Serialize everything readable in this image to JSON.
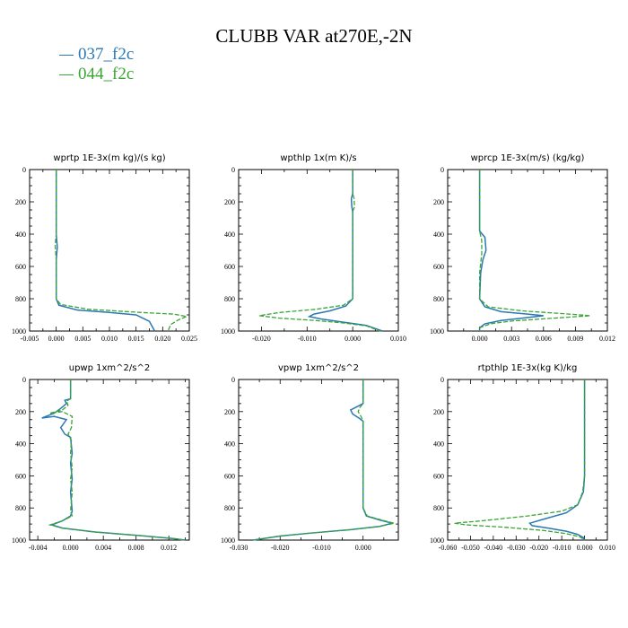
{
  "title": "CLUBB VAR at270E,-2N",
  "legend": [
    {
      "label": "037_f2c",
      "color": "#2a78b4"
    },
    {
      "label": "044_f2c",
      "color": "#3aa534"
    }
  ],
  "chart_data": [
    {
      "type": "line",
      "title": "wprtp  1E-3x(m kg)/(s kg)",
      "xlim": [
        -0.005,
        0.025
      ],
      "xticks": [
        "-0.005",
        "0.000",
        "0.005",
        "0.010",
        "0.015",
        "0.020",
        "0.025"
      ],
      "xtick_values": [
        -0.005,
        0.0,
        0.005,
        0.01,
        0.015,
        0.02,
        0.025
      ],
      "ylim": [
        0,
        1000
      ],
      "yticks": [
        "0",
        "200",
        "400",
        "600",
        "800",
        "1000"
      ],
      "y_inverted": true,
      "series": [
        {
          "name": "037_f2c",
          "points": [
            [
              0,
              0
            ],
            [
              0,
              400
            ],
            [
              0.0002,
              480
            ],
            [
              0,
              560
            ],
            [
              0,
              800
            ],
            [
              0.0005,
              840
            ],
            [
              0.004,
              870
            ],
            [
              0.01,
              885
            ],
            [
              0.015,
              900
            ],
            [
              0.0175,
              940
            ],
            [
              0.018,
              970
            ],
            [
              0.0185,
              1000
            ]
          ]
        },
        {
          "name": "044_f2c",
          "points": [
            [
              0,
              0
            ],
            [
              0,
              400
            ],
            [
              -0.0002,
              470
            ],
            [
              0,
              560
            ],
            [
              0,
              800
            ],
            [
              0.0008,
              835
            ],
            [
              0.006,
              865
            ],
            [
              0.016,
              885
            ],
            [
              0.022,
              895
            ],
            [
              0.0245,
              910
            ],
            [
              0.023,
              930
            ],
            [
              0.0215,
              960
            ],
            [
              0.021,
              1000
            ]
          ]
        }
      ]
    },
    {
      "type": "line",
      "title": "wpthlp  1x(m K)/s",
      "xlim": [
        -0.025,
        0.01
      ],
      "xticks": [
        "-0.020",
        "-0.010",
        "0.000",
        "0.010"
      ],
      "xtick_values": [
        -0.02,
        -0.01,
        0.0,
        0.01
      ],
      "ylim": [
        0,
        1000
      ],
      "yticks": [
        "0",
        "200",
        "400",
        "600",
        "800",
        "1000"
      ],
      "y_inverted": true,
      "series": [
        {
          "name": "037_f2c",
          "points": [
            [
              0,
              0
            ],
            [
              0,
              150
            ],
            [
              -0.0003,
              180
            ],
            [
              -0.0002,
              230
            ],
            [
              0,
              260
            ],
            [
              0,
              800
            ],
            [
              -0.0015,
              845
            ],
            [
              -0.005,
              875
            ],
            [
              -0.0085,
              895
            ],
            [
              -0.0095,
              910
            ],
            [
              -0.007,
              925
            ],
            [
              -0.002,
              945
            ],
            [
              0.003,
              965
            ],
            [
              0.0065,
              1000
            ]
          ]
        },
        {
          "name": "044_f2c",
          "points": [
            [
              0,
              0
            ],
            [
              0,
              150
            ],
            [
              0.0003,
              180
            ],
            [
              0.0004,
              230
            ],
            [
              0,
              260
            ],
            [
              0,
              800
            ],
            [
              -0.002,
              840
            ],
            [
              -0.008,
              865
            ],
            [
              -0.016,
              885
            ],
            [
              -0.0205,
              905
            ],
            [
              -0.016,
              920
            ],
            [
              -0.008,
              935
            ],
            [
              -0.002,
              950
            ],
            [
              0.003,
              968
            ],
            [
              0.006,
              1000
            ]
          ]
        }
      ]
    },
    {
      "type": "line",
      "title": "wprcp  1E-3x(m/s) (kg/kg)",
      "xlim": [
        -0.003,
        0.012
      ],
      "xticks": [
        "0.000",
        "0.003",
        "0.006",
        "0.009",
        "0.012"
      ],
      "xtick_values": [
        0.0,
        0.003,
        0.006,
        0.009,
        0.012
      ],
      "ylim": [
        0,
        1000
      ],
      "yticks": [
        "0",
        "200",
        "400",
        "600",
        "800",
        "1000"
      ],
      "y_inverted": true,
      "series": [
        {
          "name": "037_f2c",
          "points": [
            [
              0,
              0
            ],
            [
              0,
              380
            ],
            [
              0.0005,
              420
            ],
            [
              0.0006,
              500
            ],
            [
              0.0003,
              560
            ],
            [
              0.0001,
              640
            ],
            [
              0,
              800
            ],
            [
              0.0005,
              850
            ],
            [
              0.002,
              880
            ],
            [
              0.0045,
              895
            ],
            [
              0.006,
              905
            ],
            [
              0.004,
              920
            ],
            [
              0.002,
              935
            ],
            [
              0.0005,
              955
            ],
            [
              0,
              980
            ],
            [
              0,
              1000
            ]
          ]
        },
        {
          "name": "044_f2c",
          "points": [
            [
              0,
              0
            ],
            [
              0,
              380
            ],
            [
              0.0002,
              440
            ],
            [
              0.0002,
              520
            ],
            [
              0.0001,
              580
            ],
            [
              0,
              640
            ],
            [
              0,
              800
            ],
            [
              0.0008,
              850
            ],
            [
              0.004,
              875
            ],
            [
              0.008,
              893
            ],
            [
              0.0104,
              905
            ],
            [
              0.007,
              920
            ],
            [
              0.003,
              938
            ],
            [
              0.001,
              955
            ],
            [
              0,
              980
            ],
            [
              0,
              1000
            ]
          ]
        }
      ]
    },
    {
      "type": "line",
      "title": "upwp  1xm^2/s^2",
      "xlim": [
        -0.005,
        0.0145
      ],
      "xticks": [
        "-0.004",
        "0.000",
        "0.004",
        "0.008",
        "0.012"
      ],
      "xtick_values": [
        -0.004,
        0.0,
        0.004,
        0.008,
        0.012
      ],
      "ylim": [
        0,
        1000
      ],
      "yticks": [
        "0",
        "200",
        "400",
        "600",
        "800",
        "1000"
      ],
      "y_inverted": true,
      "series": [
        {
          "name": "037_f2c",
          "points": [
            [
              0,
              0
            ],
            [
              0,
              120
            ],
            [
              -0.0007,
              130
            ],
            [
              -0.0005,
              150
            ],
            [
              -0.0012,
              180
            ],
            [
              -0.002,
              210
            ],
            [
              -0.0035,
              240
            ],
            [
              -0.002,
              230
            ],
            [
              -0.0005,
              250
            ],
            [
              -0.0012,
              300
            ],
            [
              -0.0007,
              340
            ],
            [
              0,
              360
            ],
            [
              0.0002,
              460
            ],
            [
              0,
              520
            ],
            [
              0.0002,
              620
            ],
            [
              0,
              700
            ],
            [
              0.0002,
              820
            ],
            [
              0,
              850
            ],
            [
              -0.001,
              880
            ],
            [
              -0.0023,
              905
            ],
            [
              -0.001,
              925
            ],
            [
              0.003,
              950
            ],
            [
              0.008,
              970
            ],
            [
              0.0125,
              990
            ],
            [
              0.014,
              1000
            ]
          ]
        },
        {
          "name": "044_f2c",
          "points": [
            [
              0,
              0
            ],
            [
              0,
              120
            ],
            [
              -0.0005,
              135
            ],
            [
              -0.0003,
              160
            ],
            [
              -0.001,
              190
            ],
            [
              -0.0025,
              210
            ],
            [
              -0.001,
              200
            ],
            [
              0.0002,
              230
            ],
            [
              0.0001,
              300
            ],
            [
              -0.0003,
              340
            ],
            [
              0.0001,
              380
            ],
            [
              0,
              460
            ],
            [
              0.0002,
              550
            ],
            [
              0,
              620
            ],
            [
              0.0002,
              700
            ],
            [
              0,
              820
            ],
            [
              0.0002,
              850
            ],
            [
              -0.001,
              880
            ],
            [
              -0.0025,
              905
            ],
            [
              -0.001,
              925
            ],
            [
              0.003,
              950
            ],
            [
              0.008,
              970
            ],
            [
              0.0125,
              990
            ],
            [
              0.014,
              1000
            ]
          ]
        }
      ]
    },
    {
      "type": "line",
      "title": "vpwp  1xm^2/s^2",
      "xlim": [
        -0.03,
        0.0085
      ],
      "xticks": [
        "-0.030",
        "-0.020",
        "-0.010",
        "0.000"
      ],
      "xtick_values": [
        -0.03,
        -0.02,
        -0.01,
        0.0
      ],
      "ylim": [
        0,
        1000
      ],
      "yticks": [
        "0",
        "200",
        "400",
        "600",
        "800",
        "1000"
      ],
      "y_inverted": true,
      "series": [
        {
          "name": "037_f2c",
          "points": [
            [
              0,
              0
            ],
            [
              0,
              150
            ],
            [
              -0.0015,
              170
            ],
            [
              -0.003,
              190
            ],
            [
              -0.0025,
              215
            ],
            [
              -0.001,
              240
            ],
            [
              0,
              260
            ],
            [
              0,
              800
            ],
            [
              0.0008,
              850
            ],
            [
              0.004,
              875
            ],
            [
              0.007,
              895
            ],
            [
              0.004,
              915
            ],
            [
              -0.003,
              935
            ],
            [
              -0.012,
              955
            ],
            [
              -0.02,
              975
            ],
            [
              -0.0265,
              1000
            ]
          ]
        },
        {
          "name": "044_f2c",
          "points": [
            [
              0,
              0
            ],
            [
              0,
              150
            ],
            [
              -0.0008,
              175
            ],
            [
              -0.0012,
              200
            ],
            [
              -0.0005,
              230
            ],
            [
              0,
              260
            ],
            [
              0,
              800
            ],
            [
              0.001,
              850
            ],
            [
              0.0045,
              875
            ],
            [
              0.0075,
              895
            ],
            [
              0.004,
              915
            ],
            [
              -0.003,
              935
            ],
            [
              -0.012,
              955
            ],
            [
              -0.02,
              975
            ],
            [
              -0.0265,
              1000
            ]
          ]
        }
      ]
    },
    {
      "type": "line",
      "title": "rtpthlp  1E-3x(kg K)/kg",
      "xlim": [
        -0.06,
        0.01
      ],
      "xticks": [
        "-0.060",
        "-0.050",
        "-0.040",
        "-0.030",
        "-0.020",
        "-0.010",
        "0.000",
        "0.010"
      ],
      "xtick_values": [
        -0.06,
        -0.05,
        -0.04,
        -0.03,
        -0.02,
        -0.01,
        0.0,
        0.01
      ],
      "ylim": [
        0,
        1000
      ],
      "yticks": [
        "0",
        "200",
        "400",
        "600",
        "800",
        "1000"
      ],
      "y_inverted": true,
      "series": [
        {
          "name": "037_f2c",
          "points": [
            [
              0,
              0
            ],
            [
              0,
              600
            ],
            [
              -0.0005,
              700
            ],
            [
              -0.003,
              780
            ],
            [
              -0.008,
              830
            ],
            [
              -0.018,
              870
            ],
            [
              -0.024,
              895
            ],
            [
              -0.023,
              910
            ],
            [
              -0.016,
              925
            ],
            [
              -0.008,
              945
            ],
            [
              -0.003,
              965
            ],
            [
              -0.0005,
              985
            ],
            [
              0,
              1000
            ]
          ]
        },
        {
          "name": "044_f2c",
          "points": [
            [
              0,
              0
            ],
            [
              0,
              600
            ],
            [
              -0.0008,
              700
            ],
            [
              -0.003,
              780
            ],
            [
              -0.01,
              820
            ],
            [
              -0.025,
              850
            ],
            [
              -0.045,
              880
            ],
            [
              -0.057,
              895
            ],
            [
              -0.052,
              905
            ],
            [
              -0.035,
              920
            ],
            [
              -0.018,
              940
            ],
            [
              -0.008,
              960
            ],
            [
              -0.002,
              980
            ],
            [
              0,
              1000
            ]
          ]
        }
      ]
    }
  ]
}
